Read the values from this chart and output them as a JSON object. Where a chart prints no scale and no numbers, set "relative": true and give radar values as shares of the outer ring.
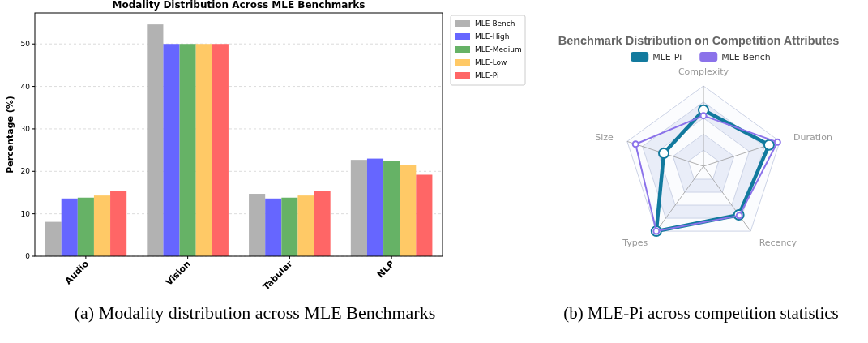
{
  "chart_data": [
    {
      "type": "bar",
      "title": "Modality Distribution Across MLE Benchmarks",
      "ylabel": "Percentage (%)",
      "categories": [
        "Audio",
        "Vision",
        "Tabular",
        "NLP"
      ],
      "series": [
        {
          "name": "MLE-Bench",
          "color": "#b2b2b2",
          "values": [
            8.1,
            54.6,
            14.7,
            22.7
          ]
        },
        {
          "name": "MLE-High",
          "color": "#6666ff",
          "values": [
            13.6,
            50,
            13.6,
            23.0
          ]
        },
        {
          "name": "MLE-Medium",
          "color": "#66b266",
          "values": [
            13.8,
            50,
            13.8,
            22.5
          ]
        },
        {
          "name": "MLE-Low",
          "color": "#ffc966",
          "values": [
            14.3,
            50,
            14.3,
            21.5
          ]
        },
        {
          "name": "MLE-Pi",
          "color": "#ff6666",
          "values": [
            15.4,
            50,
            15.4,
            19.2
          ]
        }
      ],
      "ylim": [
        0,
        57.3
      ],
      "yticks": [
        0,
        10,
        20,
        30,
        40,
        50
      ],
      "grid": "y",
      "legend": "top right",
      "annotations": [
        "(a) Modality distribution across MLE Benchmarks"
      ]
    },
    {
      "type": "radar",
      "title": "Benchmark Distribution on Competition Attributes",
      "categories": [
        "Complexity",
        "Duration",
        "Recency",
        "Types",
        "Size"
      ],
      "relative": true,
      "series": [
        {
          "name": "MLE-Pi",
          "color": "#127a9e",
          "values": [
            0.7,
            0.86,
            0.75,
            1.0,
            0.52
          ]
        },
        {
          "name": "MLE-Bench",
          "color": "#8b72ea",
          "values": [
            0.63,
            0.97,
            0.76,
            1.0,
            0.89
          ]
        }
      ],
      "legend": "top",
      "marker": "circle",
      "annotations": [
        "(b) MLE-Pi across competition statistics"
      ]
    }
  ]
}
